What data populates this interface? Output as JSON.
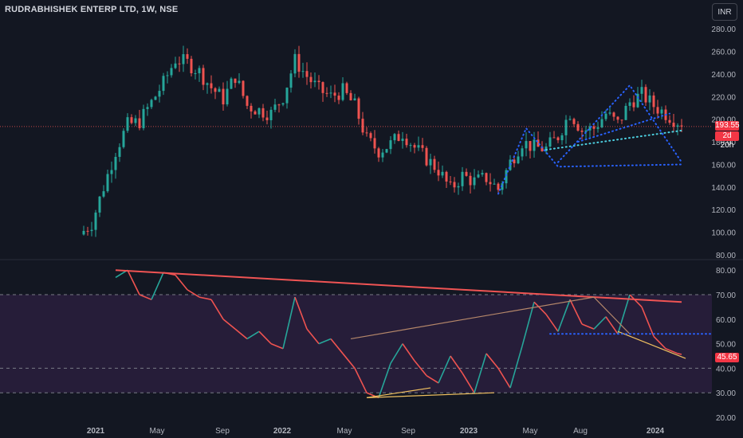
{
  "header": {
    "symbol": "RUDRABHISHEK ENTERP LTD, 1W, NSE",
    "currency_button": "INR"
  },
  "price_tag": {
    "value": "193.55",
    "countdown": "2d 20h"
  },
  "rsi_tag": {
    "value": "45.65"
  },
  "colors": {
    "up": "#26a69a",
    "down": "#ef5350",
    "background": "#131722",
    "rsi_band": "#2a1e3d",
    "trendline_red": "#f05454",
    "trendline_tan": "#b5876a",
    "trendline_yellow": "#f0c060",
    "dotted_blue": "#2962ff",
    "dotted_cyan": "#4dd0e1",
    "rsi_up": "#26a69a",
    "rsi_down": "#ef5350"
  },
  "chart_data": [
    {
      "type": "candlestick",
      "y_axis_ticks": [
        "280.00",
        "260.00",
        "240.00",
        "220.00",
        "200.00",
        "180.00",
        "160.00",
        "140.00",
        "120.00",
        "100.00",
        "80.00"
      ],
      "ylim": [
        80,
        290
      ],
      "last_price": 193.55,
      "price_points": [
        [
          0,
          98
        ],
        [
          3,
          108
        ],
        [
          6,
          140
        ],
        [
          9,
          172
        ],
        [
          12,
          195
        ],
        [
          15,
          198
        ],
        [
          18,
          215
        ],
        [
          21,
          232
        ],
        [
          24,
          253
        ],
        [
          27,
          250
        ],
        [
          30,
          242
        ],
        [
          33,
          228
        ],
        [
          36,
          218
        ],
        [
          39,
          238
        ],
        [
          42,
          212
        ],
        [
          45,
          208
        ],
        [
          48,
          205
        ],
        [
          51,
          220
        ],
        [
          54,
          252
        ],
        [
          57,
          238
        ],
        [
          60,
          226
        ],
        [
          63,
          220
        ],
        [
          66,
          225
        ],
        [
          69,
          212
        ],
        [
          72,
          182
        ],
        [
          75,
          172
        ],
        [
          78,
          178
        ],
        [
          81,
          188
        ],
        [
          84,
          175
        ],
        [
          87,
          165
        ],
        [
          90,
          155
        ],
        [
          93,
          138
        ],
        [
          96,
          150
        ],
        [
          99,
          145
        ],
        [
          102,
          148
        ],
        [
          105,
          138
        ],
        [
          108,
          162
        ],
        [
          111,
          180
        ],
        [
          114,
          175
        ],
        [
          117,
          174
        ],
        [
          120,
          185
        ],
        [
          123,
          206
        ],
        [
          126,
          190
        ],
        [
          129,
          192
        ],
        [
          132,
          205
        ],
        [
          135,
          196
        ],
        [
          138,
          215
        ],
        [
          141,
          222
        ],
        [
          144,
          212
        ],
        [
          147,
          205
        ],
        [
          150,
          198
        ],
        [
          151,
          193.55
        ]
      ],
      "dotted_trendlines": [
        {
          "color": "blue",
          "points": [
            [
              105,
              134
            ],
            [
              112,
              192
            ],
            [
              120,
              158
            ],
            [
              151,
              160
            ]
          ]
        },
        {
          "color": "blue",
          "points": [
            [
              125,
              180
            ],
            [
              148,
              205
            ]
          ]
        },
        {
          "color": "cyan",
          "points": [
            [
              117,
              173
            ],
            [
              151,
              190
            ]
          ]
        },
        {
          "color": "blue",
          "points": [
            [
              120,
              162
            ],
            [
              138,
              230
            ],
            [
              151,
              162
            ]
          ]
        }
      ]
    },
    {
      "type": "line",
      "name": "RSI",
      "y_axis_ticks": [
        "80.00",
        "70.00",
        "60.00",
        "50.00",
        "40.00",
        "30.00",
        "20.00"
      ],
      "ylim": [
        20,
        83
      ],
      "bands": {
        "upper": 70,
        "lower": 30,
        "mid": 40
      },
      "last_value": 45.65,
      "x_tick_labels": [
        "2021",
        "May",
        "Sep",
        "2022",
        "May",
        "Sep",
        "2023",
        "May",
        "Aug",
        "2024"
      ],
      "rsi_points": [
        [
          9,
          77
        ],
        [
          12,
          80
        ],
        [
          15,
          70
        ],
        [
          18,
          68
        ],
        [
          21,
          79
        ],
        [
          24,
          78
        ],
        [
          27,
          72
        ],
        [
          30,
          69
        ],
        [
          33,
          68
        ],
        [
          36,
          60
        ],
        [
          39,
          56
        ],
        [
          42,
          52
        ],
        [
          45,
          55
        ],
        [
          48,
          50
        ],
        [
          51,
          48
        ],
        [
          54,
          69
        ],
        [
          57,
          56
        ],
        [
          60,
          50
        ],
        [
          63,
          52
        ],
        [
          66,
          46
        ],
        [
          69,
          40
        ],
        [
          72,
          30
        ],
        [
          75,
          28
        ],
        [
          78,
          42
        ],
        [
          81,
          50
        ],
        [
          84,
          43
        ],
        [
          87,
          37
        ],
        [
          90,
          34
        ],
        [
          93,
          45
        ],
        [
          96,
          38
        ],
        [
          99,
          30
        ],
        [
          102,
          46
        ],
        [
          105,
          40
        ],
        [
          108,
          32
        ],
        [
          111,
          49
        ],
        [
          114,
          67
        ],
        [
          117,
          62
        ],
        [
          120,
          55
        ],
        [
          123,
          68
        ],
        [
          126,
          58
        ],
        [
          129,
          56
        ],
        [
          132,
          61
        ],
        [
          135,
          54
        ],
        [
          138,
          70
        ],
        [
          141,
          65
        ],
        [
          144,
          53
        ],
        [
          147,
          48
        ],
        [
          150,
          46
        ],
        [
          151,
          45.65
        ]
      ],
      "trendlines": [
        {
          "color": "red",
          "points": [
            [
              9,
              80
            ],
            [
              151,
              67
            ]
          ]
        },
        {
          "color": "tan",
          "points": [
            [
              68,
              52
            ],
            [
              129,
              69
            ]
          ]
        },
        {
          "color": "yellow",
          "points": [
            [
              72,
              28
            ],
            [
              88,
              32
            ]
          ]
        },
        {
          "color": "yellow",
          "points": [
            [
              72,
              28
            ],
            [
              104,
              30
            ]
          ]
        },
        {
          "color": "yellow",
          "points": [
            [
              135,
              55
            ],
            [
              152,
              44
            ]
          ]
        },
        {
          "color": "tan",
          "points": [
            [
              129,
              69
            ],
            [
              138,
              54
            ]
          ]
        }
      ]
    }
  ]
}
